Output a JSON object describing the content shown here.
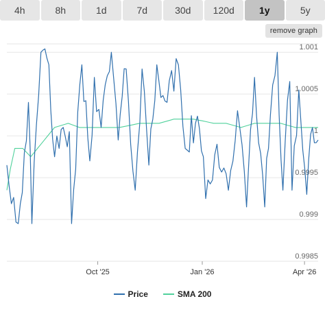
{
  "tabs": [
    {
      "label": "4h"
    },
    {
      "label": "8h"
    },
    {
      "label": "1d"
    },
    {
      "label": "7d"
    },
    {
      "label": "30d"
    },
    {
      "label": "120d"
    },
    {
      "label": "1y"
    },
    {
      "label": "5y"
    }
  ],
  "active_tab": "1y",
  "remove_button": "remove graph",
  "colors": {
    "price": "#2f6fad",
    "sma": "#4fd19b",
    "grid": "#e6e6e6"
  },
  "chart_data": {
    "type": "line",
    "ylim": [
      0.9985,
      1.0011
    ],
    "y_ticks": [
      {
        "value": 0.9985,
        "label": "0.9985"
      },
      {
        "value": 0.999,
        "label": "0.999"
      },
      {
        "value": 0.9995,
        "label": "0.9995"
      },
      {
        "value": 1.0,
        "label": "1"
      },
      {
        "value": 1.0005,
        "label": "1.0005"
      },
      {
        "value": 1.001,
        "label": "1.001"
      }
    ],
    "x_range": [
      "2025-07-13",
      "2026-04-13"
    ],
    "x_ticks": [
      {
        "date": "2025-10-01",
        "label": "Oct '25"
      },
      {
        "date": "2026-01-01",
        "label": "Jan '26"
      },
      {
        "date": "2026-04-01",
        "label": "Apr '26"
      }
    ],
    "series": [
      {
        "name": "Price",
        "x": [
          "2025-07-13",
          "2025-07-23",
          "2025-08-01",
          "2025-08-04",
          "2025-08-12",
          "2025-08-19",
          "2025-08-24",
          "2025-08-28",
          "2025-09-06",
          "2025-09-08",
          "2025-09-17",
          "2025-09-24",
          "2025-09-28",
          "2025-10-04",
          "2025-10-13",
          "2025-10-19",
          "2025-10-26",
          "2025-11-03",
          "2025-11-09",
          "2025-11-15",
          "2025-11-22",
          "2025-12-01",
          "2025-12-11",
          "2025-12-17",
          "2025-12-26",
          "2026-01-02",
          "2026-01-04",
          "2026-01-14",
          "2026-01-24",
          "2026-02-01",
          "2026-02-09",
          "2026-02-16",
          "2026-02-25",
          "2026-03-02",
          "2026-03-08",
          "2026-03-13",
          "2026-03-19",
          "2026-03-21",
          "2026-03-27",
          "2026-04-03",
          "2026-04-08",
          "2026-04-13"
        ],
        "y": [
          0.99965,
          0.99895,
          1.0004,
          0.99895,
          1.001,
          1.00085,
          0.99975,
          0.99985,
          1.00005,
          0.99895,
          1.00085,
          0.9997,
          1.0007,
          1.0001,
          1.001,
          0.99995,
          1.0008,
          0.99935,
          1.0008,
          0.99965,
          1.00085,
          1.0004,
          1.00085,
          0.99985,
          1.00015,
          0.99975,
          0.99925,
          0.9999,
          0.99935,
          1.0003,
          0.99915,
          1.0007,
          0.99915,
          1.00025,
          1.001,
          0.99935,
          1.00065,
          0.99935,
          1.00055,
          0.9993,
          1.0001,
          0.99995
        ]
      },
      {
        "name": "SMA 200",
        "x": [
          "2025-07-13",
          "2025-07-16",
          "2025-07-20",
          "2025-07-27",
          "2025-08-03",
          "2025-08-15",
          "2025-08-24",
          "2025-09-05",
          "2025-09-15",
          "2025-10-03",
          "2025-10-20",
          "2025-11-07",
          "2025-11-24",
          "2025-12-07",
          "2025-12-16",
          "2025-12-24",
          "2026-01-01",
          "2026-01-11",
          "2026-01-22",
          "2026-02-04",
          "2026-02-16",
          "2026-03-02",
          "2026-03-11",
          "2026-03-24",
          "2026-04-06",
          "2026-04-13"
        ],
        "y": [
          0.99935,
          0.9996,
          0.99985,
          0.99985,
          0.99975,
          0.99995,
          1.0001,
          1.00015,
          1.0001,
          1.0001,
          1.0001,
          1.00015,
          1.00015,
          1.0002,
          1.0002,
          1.0002,
          1.00018,
          1.00015,
          1.00015,
          1.0001,
          1.00015,
          1.00015,
          1.00015,
          1.0001,
          1.0001,
          1.0001
        ]
      }
    ],
    "legend": "bottom-center"
  }
}
